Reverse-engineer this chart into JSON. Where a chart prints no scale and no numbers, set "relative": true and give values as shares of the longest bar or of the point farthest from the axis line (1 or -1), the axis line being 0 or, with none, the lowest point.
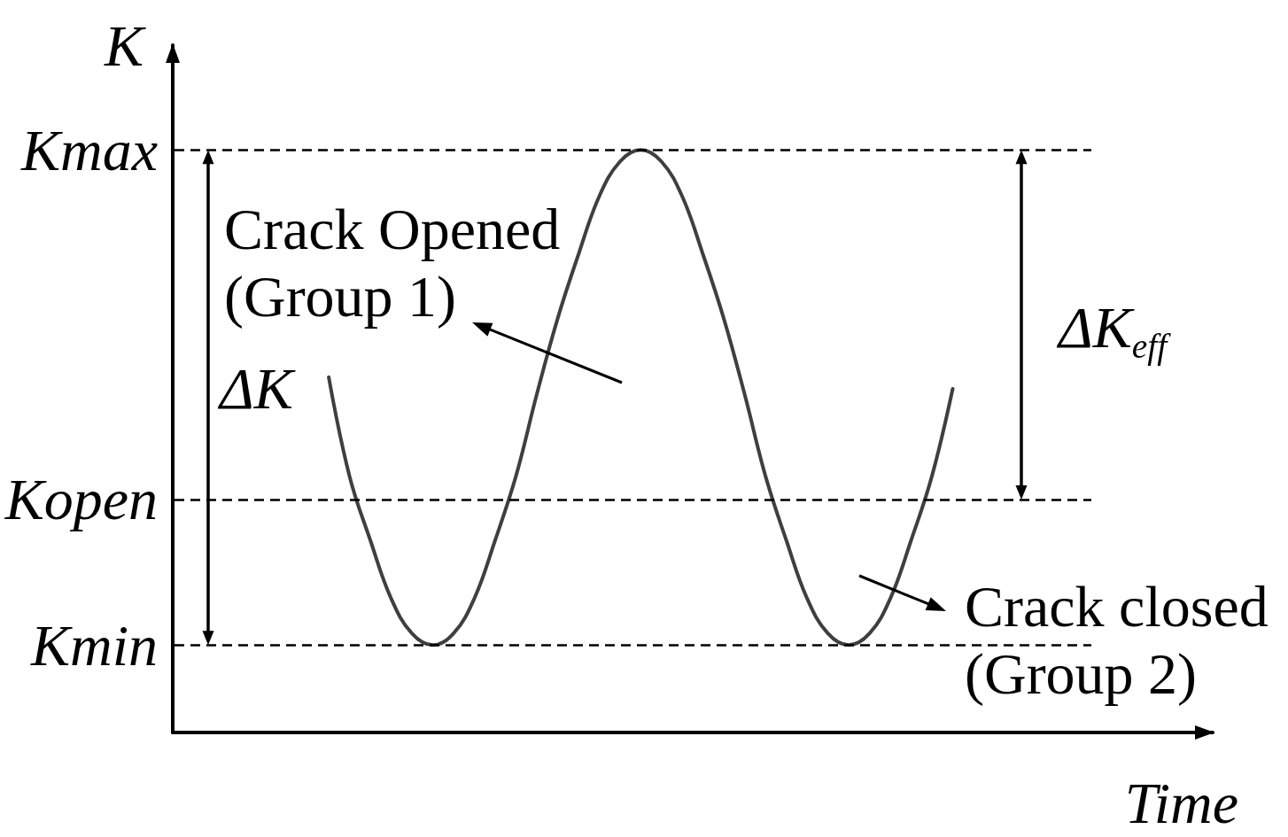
{
  "chart_data": {
    "type": "line",
    "relative": true,
    "xlabel": "Time",
    "ylabel": "K",
    "categories": [
      null,
      null,
      null,
      null,
      null,
      null,
      null,
      null,
      null,
      null,
      null,
      null,
      null,
      null,
      null,
      null,
      null,
      null,
      null,
      null,
      null,
      null,
      null,
      null,
      null,
      null,
      null,
      null,
      null,
      null,
      null,
      null,
      null,
      null,
      null,
      null,
      null,
      null,
      null,
      null,
      null,
      null,
      null,
      null,
      null,
      null,
      null,
      null,
      null,
      null
    ],
    "series": [
      {
        "color": "#3f3f3f",
        "values": [
          null,
          null,
          null,
          null,
          null,
          null,
          null,
          0.61,
          0.44,
          0.33,
          0.23,
          0.17,
          0.15,
          0.17,
          0.23,
          0.33,
          0.44,
          0.58,
          0.71,
          0.82,
          0.92,
          0.98,
          1,
          0.98,
          0.92,
          0.82,
          0.71,
          0.58,
          0.44,
          0.33,
          0.23,
          0.17,
          0.15,
          0.17,
          0.23,
          0.33,
          0.44,
          0.59,
          null,
          null,
          null,
          null,
          null,
          null,
          null,
          null,
          null,
          null,
          null,
          null
        ]
      }
    ],
    "marker": "none",
    "line_style": "solid",
    "ref_lines": [
      {
        "axis": "y",
        "value": 1,
        "label": "Kmax",
        "color": "#000000",
        "line_style": "dashed"
      },
      {
        "axis": "y",
        "value": 0.4,
        "label": "Kopen",
        "color": "#000000",
        "line_style": "dashed"
      },
      {
        "axis": "y",
        "value": 0.15,
        "label": "Kmin",
        "color": "#000000",
        "line_style": "dashed"
      }
    ],
    "annotations": [
      "Crack Opened\n(Group 1)",
      "ΔK",
      "ΔK$_{eff}$",
      "Crack closed\n(Group 2)"
    ]
  }
}
